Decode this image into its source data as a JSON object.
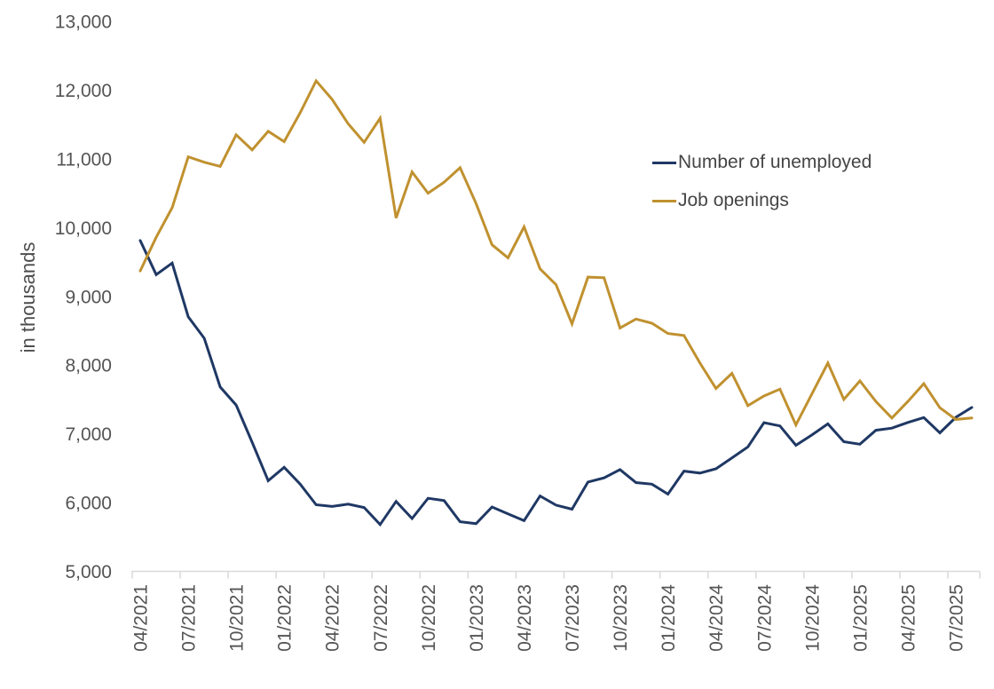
{
  "chart": {
    "y_axis_title": "in thousands",
    "colors": {
      "unemployed_line": "#1f3864",
      "openings_line": "#c0912f",
      "axis_line": "#d9d9d9",
      "tick_text": "#545454",
      "legend_text": "#454545"
    }
  },
  "chart_data": {
    "type": "line",
    "title": "",
    "xlabel": "",
    "ylabel": "in thousands",
    "ylim": [
      5000,
      13000
    ],
    "ytick_step": 1000,
    "ytick_labels": [
      "13,000",
      "12,000",
      "11,000",
      "10,000",
      "9,000",
      "8,000",
      "7,000",
      "6,000",
      "5,000"
    ],
    "ytick_values": [
      13000,
      12000,
      11000,
      10000,
      9000,
      8000,
      7000,
      6000,
      5000
    ],
    "grid": false,
    "legend_position": "upper-right-inside",
    "x": [
      "04/2021",
      "05/2021",
      "06/2021",
      "07/2021",
      "08/2021",
      "09/2021",
      "10/2021",
      "11/2021",
      "12/2021",
      "01/2022",
      "02/2022",
      "03/2022",
      "04/2022",
      "05/2022",
      "06/2022",
      "07/2022",
      "08/2022",
      "09/2022",
      "10/2022",
      "11/2022",
      "12/2022",
      "01/2023",
      "02/2023",
      "03/2023",
      "04/2023",
      "05/2023",
      "06/2023",
      "07/2023",
      "08/2023",
      "09/2023",
      "10/2023",
      "11/2023",
      "12/2023",
      "01/2024",
      "02/2024",
      "03/2024",
      "04/2024",
      "05/2024",
      "06/2024",
      "07/2024",
      "08/2024",
      "09/2024",
      "10/2024",
      "11/2024",
      "12/2024",
      "01/2025",
      "02/2025",
      "03/2025",
      "04/2025",
      "05/2025",
      "06/2025",
      "07/2025",
      "08/2025"
    ],
    "xtick_labels": [
      "04/2021",
      "07/2021",
      "10/2021",
      "01/2022",
      "04/2022",
      "07/2022",
      "10/2022",
      "01/2023",
      "04/2023",
      "07/2023",
      "10/2023",
      "01/2024",
      "04/2024",
      "07/2024",
      "10/2024",
      "01/2025",
      "04/2025",
      "07/2025"
    ],
    "xtick_every": 3,
    "series": [
      {
        "name": "Number of unemployed",
        "color": "#1f3864",
        "values": [
          9812,
          9316,
          9484,
          8702,
          8391,
          7681,
          7419,
          6877,
          6319,
          6513,
          6270,
          5969,
          5944,
          5977,
          5928,
          5681,
          6017,
          5769,
          6063,
          6029,
          5722,
          5694,
          5936,
          5837,
          5737,
          6097,
          5963,
          5904,
          6299,
          6360,
          6480,
          6292,
          6268,
          6124,
          6458,
          6429,
          6492,
          6649,
          6811,
          7163,
          7115,
          6834,
          6984,
          7145,
          6886,
          6849,
          7052,
          7083,
          7165,
          7237,
          7015,
          7240,
          7384
        ]
      },
      {
        "name": "Job openings",
        "color": "#c0912f",
        "values": [
          9370,
          9860,
          10290,
          11030,
          10950,
          10890,
          11350,
          11130,
          11400,
          11250,
          11670,
          12135,
          11865,
          11510,
          11240,
          11590,
          10140,
          10810,
          10500,
          10660,
          10870,
          10350,
          9750,
          9560,
          10010,
          9400,
          9170,
          8600,
          9280,
          9270,
          8540,
          8670,
          8610,
          8460,
          8430,
          8030,
          7660,
          7880,
          7410,
          7550,
          7650,
          7130,
          7580,
          8030,
          7500,
          7770,
          7470,
          7230,
          7470,
          7730,
          7380,
          7210,
          7230
        ]
      }
    ]
  }
}
